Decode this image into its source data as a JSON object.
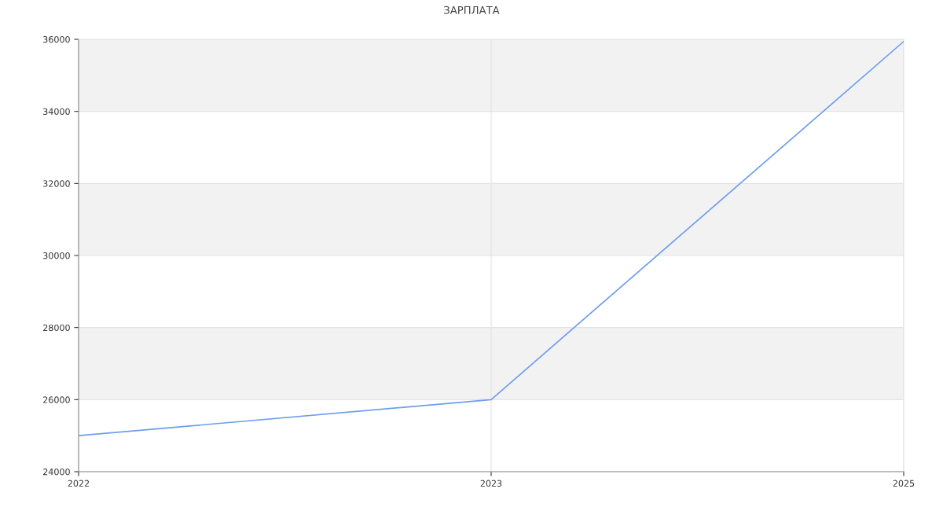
{
  "chart_data": {
    "type": "line",
    "title": "ЗАРПЛАТА",
    "categories": [
      "2022",
      "2023",
      "2025"
    ],
    "series": [
      {
        "color": "#6d9eeb",
        "values": [
          25000,
          26000,
          35940
        ]
      }
    ],
    "ylim": [
      24000,
      36000
    ],
    "yticks": [
      24000,
      26000,
      28000,
      30000,
      32000,
      34000,
      36000
    ],
    "bands": [
      {
        "axis": "y",
        "from": 26000,
        "to": 28000,
        "color": "#f2f2f2"
      },
      {
        "axis": "y",
        "from": 30000,
        "to": 32000,
        "color": "#f2f2f2"
      },
      {
        "axis": "y",
        "from": 34000,
        "to": 36000,
        "color": "#f2f2f2"
      }
    ],
    "grid": true,
    "legend": false,
    "marker": "none",
    "line_style": "solid"
  }
}
